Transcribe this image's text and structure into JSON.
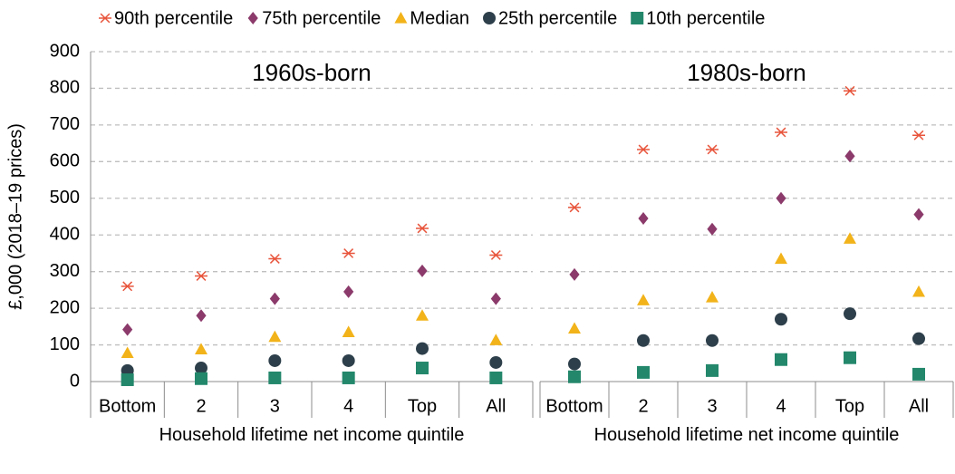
{
  "chart_data": [
    {
      "type": "dot",
      "title": "1960s-born",
      "y_label": "£,000 (2018–19 prices)",
      "x_label": "Household lifetime net income quintile",
      "categories": [
        "Bottom",
        "2",
        "3",
        "4",
        "Top",
        "All"
      ],
      "ylim": [
        0,
        900
      ],
      "yticks": [
        0,
        100,
        200,
        300,
        400,
        500,
        600,
        700,
        800,
        900
      ],
      "grid": true,
      "series": [
        {
          "name": "90th percentile",
          "color": "#e8553c",
          "marker": "asterisk",
          "values": [
            260,
            288,
            335,
            350,
            418,
            345
          ]
        },
        {
          "name": "75th percentile",
          "color": "#8b3a6b",
          "marker": "diamond",
          "values": [
            142,
            180,
            226,
            245,
            302,
            226
          ]
        },
        {
          "name": "Median",
          "color": "#f2b31a",
          "marker": "triangle",
          "values": [
            78,
            88,
            122,
            135,
            180,
            113
          ]
        },
        {
          "name": "25th percentile",
          "color": "#2d3f4a",
          "marker": "circle",
          "values": [
            30,
            37,
            57,
            57,
            90,
            52
          ]
        },
        {
          "name": "10th percentile",
          "color": "#23876b",
          "marker": "square",
          "values": [
            5,
            8,
            10,
            10,
            37,
            10
          ]
        }
      ]
    },
    {
      "type": "dot",
      "title": "1980s-born",
      "x_label": "Household lifetime net income quintile",
      "categories": [
        "Bottom",
        "2",
        "3",
        "4",
        "Top",
        "All"
      ],
      "ylim": [
        0,
        900
      ],
      "yticks": [
        0,
        100,
        200,
        300,
        400,
        500,
        600,
        700,
        800,
        900
      ],
      "grid": true,
      "series": [
        {
          "name": "90th percentile",
          "color": "#e8553c",
          "marker": "asterisk",
          "values": [
            475,
            633,
            633,
            680,
            793,
            672
          ]
        },
        {
          "name": "75th percentile",
          "color": "#8b3a6b",
          "marker": "diamond",
          "values": [
            292,
            445,
            416,
            500,
            615,
            456
          ]
        },
        {
          "name": "Median",
          "color": "#f2b31a",
          "marker": "triangle",
          "values": [
            145,
            222,
            230,
            335,
            390,
            245
          ]
        },
        {
          "name": "25th percentile",
          "color": "#2d3f4a",
          "marker": "circle",
          "values": [
            48,
            112,
            112,
            170,
            185,
            117
          ]
        },
        {
          "name": "10th percentile",
          "color": "#23876b",
          "marker": "square",
          "values": [
            13,
            25,
            30,
            60,
            65,
            20
          ]
        }
      ]
    }
  ]
}
